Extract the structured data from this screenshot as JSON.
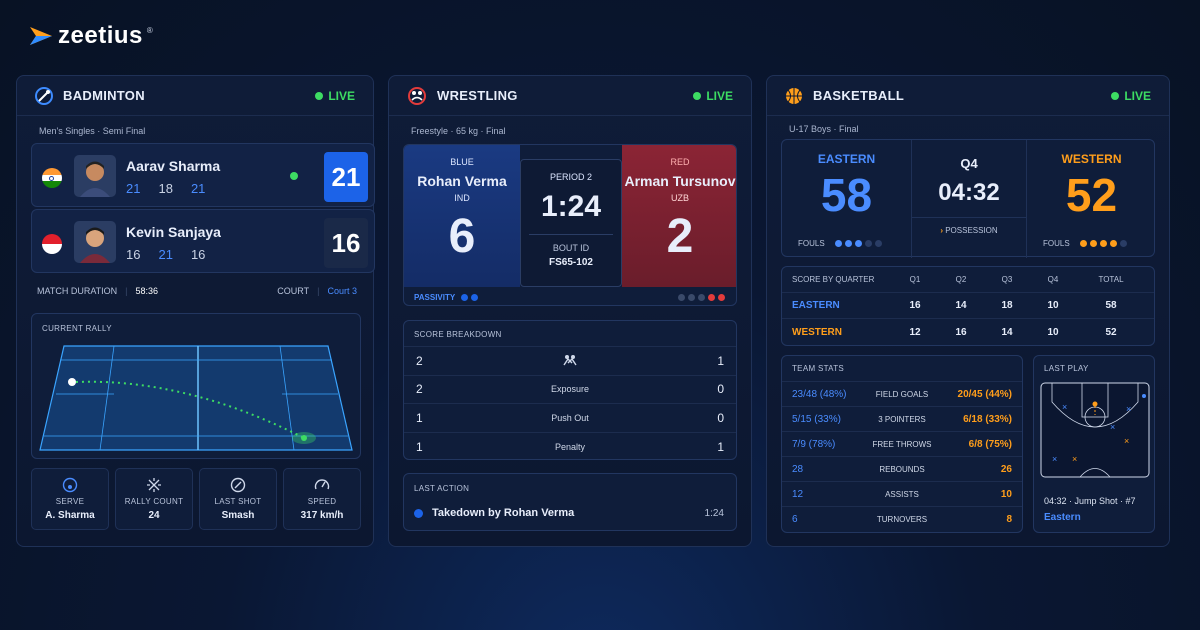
{
  "brand": {
    "name": "zeetius",
    "reg": "®"
  },
  "badminton": {
    "title": "BADMINTON",
    "live": "LIVE",
    "subtitle": "Men's Singles  ·  Semi Final",
    "players": [
      {
        "name": "Aarav Sharma",
        "sets": [
          "21",
          "18",
          "21"
        ],
        "score": "21",
        "flag": "india"
      },
      {
        "name": "Kevin Sanjaya",
        "sets": [
          "16",
          "21",
          "16"
        ],
        "score": "16",
        "flag": "indonesia"
      }
    ],
    "duration_label": "MATCH DURATION",
    "duration": "58:36",
    "court_label": "COURT",
    "court": "Court 3",
    "rally_label": "CURRENT RALLY",
    "stats": [
      {
        "label": "SERVE",
        "value": "A. Sharma",
        "icon": "shuttle-icon"
      },
      {
        "label": "RALLY COUNT",
        "value": "24",
        "icon": "rally-icon"
      },
      {
        "label": "LAST SHOT",
        "value": "Smash",
        "icon": "racket-icon"
      },
      {
        "label": "SPEED",
        "value": "317 km/h",
        "icon": "speedometer-icon"
      }
    ]
  },
  "wrestling": {
    "title": "WRESTLING",
    "live": "LIVE",
    "subtitle": "Freestyle  ·  65 kg  ·  Final",
    "blue": {
      "corner": "BLUE",
      "name": "Rohan Verma",
      "country": "IND",
      "score": "6"
    },
    "red": {
      "corner": "RED",
      "name": "Arman Tursunov",
      "country": "UZB",
      "score": "2"
    },
    "period": "PERIOD 2",
    "clock": "1:24",
    "bout_label": "BOUT ID",
    "bout": "FS65-102",
    "passivity": "PASSIVITY",
    "breakdown_label": "SCORE BREAKDOWN",
    "breakdown": [
      {
        "blue": "2",
        "label": "",
        "red": "1"
      },
      {
        "blue": "2",
        "label": "Exposure",
        "red": "0"
      },
      {
        "blue": "1",
        "label": "Push Out",
        "red": "0"
      },
      {
        "blue": "1",
        "label": "Penalty",
        "red": "1"
      }
    ],
    "last_action_label": "LAST ACTION",
    "last_action": "Takedown by Rohan Verma",
    "last_action_time": "1:24"
  },
  "basketball": {
    "title": "BASKETBALL",
    "live": "LIVE",
    "subtitle": "U-17 Boys  ·  Final",
    "home": {
      "name": "EASTERN",
      "score": "58",
      "color": "#4a8cff"
    },
    "away": {
      "name": "WESTERN",
      "score": "52",
      "color": "#ff9e1b"
    },
    "quarter": "Q4",
    "clock": "04:32",
    "possession": "POSSESSION",
    "fouls_label": "FOULS",
    "quarters_header": [
      "SCORE BY QUARTER",
      "Q1",
      "Q2",
      "Q3",
      "Q4",
      "TOTAL"
    ],
    "quarters": [
      {
        "team": "EASTERN",
        "q": [
          "16",
          "14",
          "18",
          "10"
        ],
        "total": "58"
      },
      {
        "team": "WESTERN",
        "q": [
          "12",
          "16",
          "14",
          "10"
        ],
        "total": "52"
      }
    ],
    "team_stats_label": "TEAM STATS",
    "team_stats": [
      {
        "home": "23/48 (48%)",
        "label": "FIELD GOALS",
        "away": "20/45 (44%)"
      },
      {
        "home": "5/15 (33%)",
        "label": "3 POINTERS",
        "away": "6/18 (33%)"
      },
      {
        "home": "7/9 (78%)",
        "label": "FREE THROWS",
        "away": "6/8 (75%)"
      },
      {
        "home": "28",
        "label": "REBOUNDS",
        "away": "26"
      },
      {
        "home": "12",
        "label": "ASSISTS",
        "away": "10"
      },
      {
        "home": "6",
        "label": "TURNOVERS",
        "away": "8"
      }
    ],
    "last_play_label": "LAST PLAY",
    "last_play": "04:32  ·  Jump Shot  ·  #7",
    "last_play_team": "Eastern"
  }
}
